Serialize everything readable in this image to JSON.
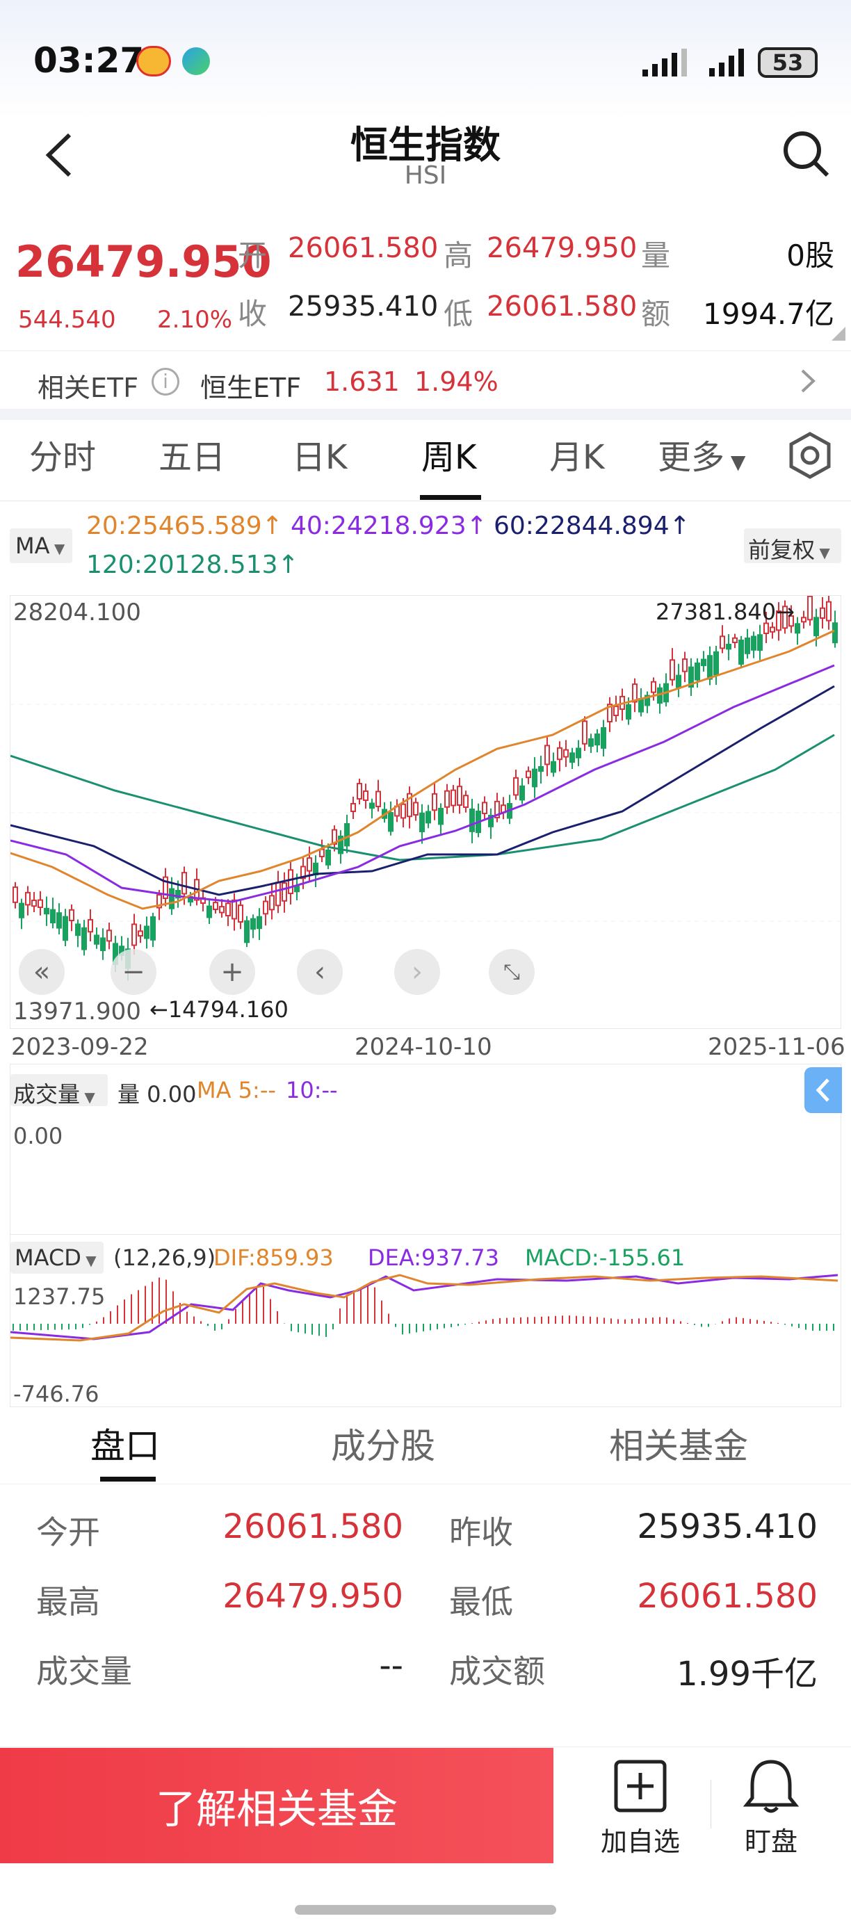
{
  "status_bar": {
    "time": "03:27",
    "battery": "53"
  },
  "header": {
    "title": "恒生指数",
    "subtitle": "HSI"
  },
  "quote": {
    "price": "26479.950",
    "change": "544.540",
    "change_pct": "2.10%",
    "open_label": "开",
    "open": "26061.580",
    "high_label": "高",
    "high": "26479.950",
    "volume_label": "量",
    "volume": "0股",
    "close_label": "收",
    "close": "25935.410",
    "low_label": "低",
    "low": "26061.580",
    "amount_label": "额",
    "amount": "1994.7亿"
  },
  "etf": {
    "label": "相关ETF",
    "name": "恒生ETF",
    "price": "1.631",
    "pct": "1.94%"
  },
  "period_tabs": [
    "分时",
    "五日",
    "日K",
    "周K",
    "月K",
    "更多"
  ],
  "ma_row": {
    "ma_btn": "MA",
    "ma20": "20:25465.589↑",
    "ma40": "40:24218.923↑",
    "ma60": "60:22844.894↑",
    "ma120": "120:20128.513↑",
    "fq": "前复权"
  },
  "kline": {
    "max_label": "28204.100",
    "min_label": "13971.900",
    "high_mark": "27381.840→",
    "low_mark": "←14794.160",
    "dates": [
      "2023-09-22",
      "2024-10-10",
      "2025-11-06"
    ]
  },
  "volume_panel": {
    "btn": "成交量",
    "vol": "量 0.00",
    "ma5": "MA 5:--",
    "ma10": "10:--",
    "axis": "0.00"
  },
  "macd_panel": {
    "btn": "MACD",
    "params": "(12,26,9)",
    "dif": "DIF:859.93",
    "dea": "DEA:937.73",
    "macd": "MACD:-155.61",
    "max": "1237.75",
    "min": "-746.76"
  },
  "bottom_tabs": [
    "盘口",
    "成分股",
    "相关基金"
  ],
  "detail": {
    "open_label": "今开",
    "open": "26061.580",
    "prev_label": "昨收",
    "prev": "25935.410",
    "high_label": "最高",
    "high": "26479.950",
    "low_label": "最低",
    "low": "26061.580",
    "vol_label": "成交量",
    "vol": "--",
    "amt_label": "成交额",
    "amt": "1.99千亿"
  },
  "footer": {
    "fund_btn": "了解相关基金",
    "watch": "加自选",
    "alert": "盯盘"
  },
  "colors": {
    "up": "#d6323a",
    "down": "#19a15f",
    "ma20": "#e0852c",
    "ma40": "#8a2be2",
    "ma60": "#1a1f6e",
    "ma120": "#1a9070"
  }
}
